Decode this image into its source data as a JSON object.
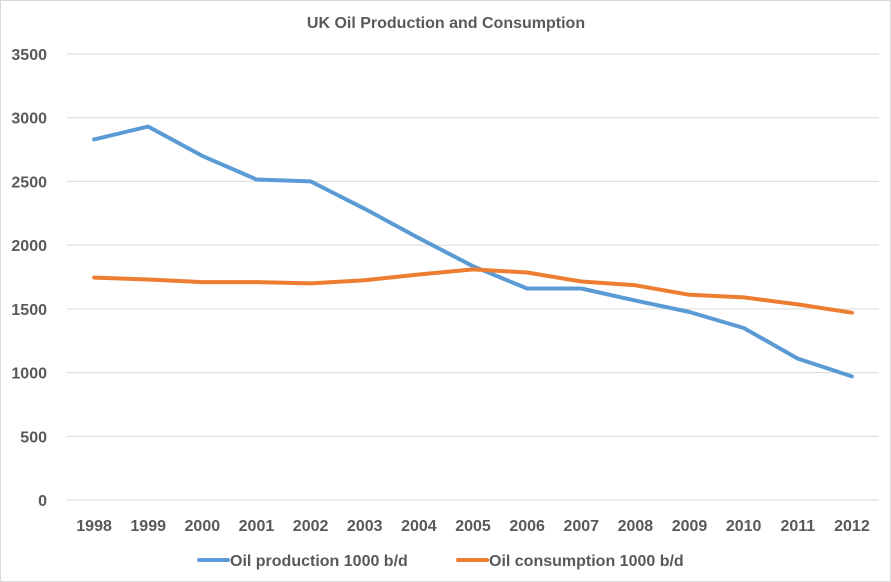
{
  "chart_data": {
    "type": "line",
    "title": "UK Oil Production  and Consumption",
    "xlabel": "",
    "ylabel": "",
    "categories": [
      "1998",
      "1999",
      "2000",
      "2001",
      "2002",
      "2003",
      "2004",
      "2005",
      "2006",
      "2007",
      "2008",
      "2009",
      "2010",
      "2011",
      "2012"
    ],
    "ylim": [
      0,
      3500
    ],
    "yticks": [
      "0",
      "500",
      "1000",
      "1500",
      "2000",
      "2500",
      "3000",
      "3500"
    ],
    "grid": true,
    "legend_position": "bottom",
    "series": [
      {
        "name": "Oil production 1000 b/d",
        "color": "#5b9bd5",
        "values": [
          2830,
          2930,
          2700,
          2515,
          2500,
          2285,
          2055,
          1835,
          1660,
          1660,
          1565,
          1475,
          1350,
          1110,
          970
        ]
      },
      {
        "name": "Oil consumption 1000 b/d",
        "color": "#ed7d31",
        "values": [
          1745,
          1730,
          1710,
          1710,
          1700,
          1725,
          1770,
          1810,
          1785,
          1715,
          1685,
          1610,
          1590,
          1535,
          1470
        ]
      }
    ]
  }
}
